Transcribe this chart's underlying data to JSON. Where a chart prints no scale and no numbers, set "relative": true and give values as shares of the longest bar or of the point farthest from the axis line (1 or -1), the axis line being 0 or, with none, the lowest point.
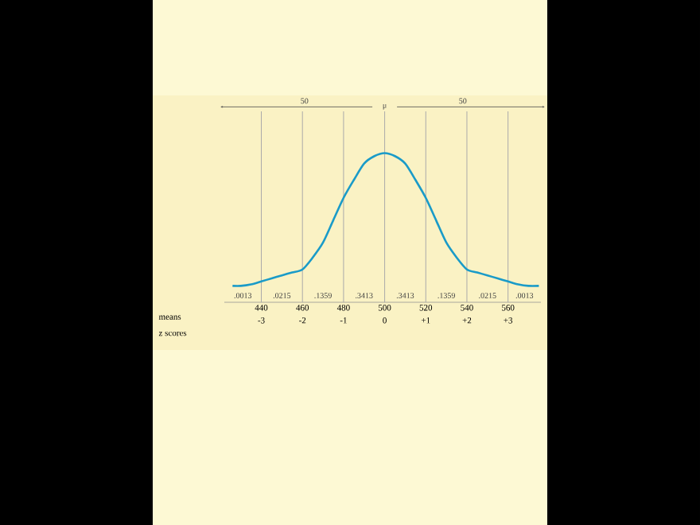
{
  "chart_data": {
    "type": "line",
    "relative": true,
    "x": [
      426,
      430,
      435,
      440,
      445,
      450,
      455,
      460,
      465,
      470,
      475,
      480,
      485,
      490,
      495,
      500,
      505,
      510,
      515,
      520,
      525,
      530,
      535,
      540,
      545,
      550,
      555,
      560,
      565,
      570,
      575
    ],
    "series": [
      {
        "color": "#1a9bc8",
        "values": [
          0.11,
          0.11,
          0.12,
          0.14,
          0.16,
          0.18,
          0.2,
          0.22,
          0.3,
          0.4,
          0.55,
          0.7,
          0.82,
          0.93,
          0.98,
          1,
          0.98,
          0.93,
          0.82,
          0.7,
          0.55,
          0.4,
          0.3,
          0.22,
          0.2,
          0.18,
          0.16,
          0.14,
          0.12,
          0.11,
          0.11
        ]
      }
    ],
    "xlim": [
      422,
      576
    ],
    "xticks": [
      440,
      460,
      480,
      500,
      520,
      540,
      560
    ],
    "x2lim": [
      -3.9,
      3.8
    ],
    "x2ticks": [
      {
        "value": -3,
        "label": "-3"
      },
      {
        "value": -2,
        "label": "-2"
      },
      {
        "value": -1,
        "label": "-1"
      },
      {
        "value": 0,
        "label": "0"
      },
      {
        "value": 1,
        "label": "+1"
      },
      {
        "value": 2,
        "label": "+2"
      },
      {
        "value": 3,
        "label": "+3"
      }
    ],
    "xlabel": "means",
    "x2label": "z scores",
    "ref_lines": [
      {
        "axis": "x",
        "value": 440,
        "label": null,
        "color": "#aaaaaa"
      },
      {
        "axis": "x",
        "value": 460,
        "label": null,
        "color": "#aaaaaa"
      },
      {
        "axis": "x",
        "value": 480,
        "label": null,
        "color": "#aaaaaa"
      },
      {
        "axis": "x",
        "value": 500,
        "label": "μ",
        "color": "#aaaaaa"
      },
      {
        "axis": "x",
        "value": 520,
        "label": null,
        "color": "#aaaaaa"
      },
      {
        "axis": "x",
        "value": 540,
        "label": null,
        "color": "#aaaaaa"
      },
      {
        "axis": "x",
        "value": 560,
        "label": null,
        "color": "#aaaaaa"
      }
    ],
    "annotations": [
      "50",
      "50",
      ".0013",
      ".0215",
      ".1359",
      ".3413",
      ".3413",
      ".1359",
      ".0215",
      ".0013"
    ],
    "grid": false,
    "marker": "none",
    "line_style": "solid"
  }
}
